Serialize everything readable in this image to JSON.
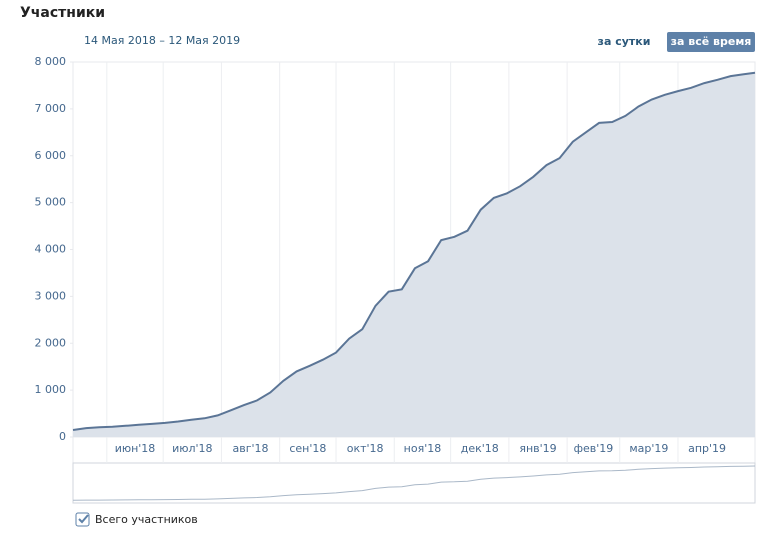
{
  "title": "Участники",
  "subtitle": "14 Мая 2018 – 12 Мая 2019",
  "buttons": [
    "за сутки",
    "за всё время"
  ],
  "chart_data": {
    "type": "area",
    "color": "#5b7596",
    "fill": "#dce2ea",
    "grid": "x",
    "xlim": [
      "2018-05-14",
      "2019-05-12"
    ],
    "xticks": [
      {
        "value": "2018-06-01",
        "label": "июн'18"
      },
      {
        "value": "2018-07-01",
        "label": "июл'18"
      },
      {
        "value": "2018-08-01",
        "label": "авг'18"
      },
      {
        "value": "2018-09-01",
        "label": "сен'18"
      },
      {
        "value": "2018-10-01",
        "label": "окт'18"
      },
      {
        "value": "2018-11-01",
        "label": "ноя'18"
      },
      {
        "value": "2018-12-01",
        "label": "дек'18"
      },
      {
        "value": "2019-01-01",
        "label": "янв'19"
      },
      {
        "value": "2019-02-01",
        "label": "фев'19"
      },
      {
        "value": "2019-03-01",
        "label": "мар'19"
      },
      {
        "value": "2019-04-01",
        "label": "апр'19"
      }
    ],
    "ylim": [
      0,
      8000
    ],
    "yticks": [
      0,
      {
        "value": 1000,
        "label": "1 000"
      },
      {
        "value": 2000,
        "label": "2 000"
      },
      {
        "value": 3000,
        "label": "3 000"
      },
      {
        "value": 4000,
        "label": "4 000"
      },
      {
        "value": 5000,
        "label": "5 000"
      },
      {
        "value": 6000,
        "label": "6 000"
      },
      {
        "value": 7000,
        "label": "7 000"
      },
      {
        "value": 8000,
        "label": "8 000"
      }
    ],
    "x": [
      "2018-05-14",
      "2018-05-21",
      "2018-05-28",
      "2018-06-04",
      "2018-06-11",
      "2018-06-18",
      "2018-06-25",
      "2018-07-02",
      "2018-07-09",
      "2018-07-16",
      "2018-07-23",
      "2018-07-30",
      "2018-08-06",
      "2018-08-13",
      "2018-08-20",
      "2018-08-27",
      "2018-09-03",
      "2018-09-10",
      "2018-09-17",
      "2018-09-24",
      "2018-10-01",
      "2018-10-08",
      "2018-10-15",
      "2018-10-22",
      "2018-10-29",
      "2018-11-05",
      "2018-11-12",
      "2018-11-19",
      "2018-11-26",
      "2018-12-03",
      "2018-12-10",
      "2018-12-17",
      "2018-12-24",
      "2018-12-31",
      "2019-01-07",
      "2019-01-14",
      "2019-01-21",
      "2019-01-28",
      "2019-02-04",
      "2019-02-11",
      "2019-02-18",
      "2019-02-25",
      "2019-03-04",
      "2019-03-11",
      "2019-03-18",
      "2019-03-25",
      "2019-04-01",
      "2019-04-08",
      "2019-04-15",
      "2019-04-22",
      "2019-04-29",
      "2019-05-06",
      "2019-05-12"
    ],
    "series": [
      {
        "name": "Всего участников",
        "values": [
          150,
          190,
          210,
          220,
          240,
          260,
          280,
          300,
          330,
          370,
          400,
          460,
          570,
          680,
          780,
          950,
          1200,
          1400,
          1520,
          1650,
          1800,
          2100,
          2300,
          2800,
          3100,
          3150,
          3600,
          3750,
          4200,
          4270,
          4400,
          4850,
          5100,
          5200,
          5350,
          5550,
          5800,
          5950,
          6300,
          6500,
          6700,
          6720,
          6850,
          7050,
          7200,
          7300,
          7380,
          7450,
          7550,
          7620,
          7700,
          7740,
          7770
        ]
      }
    ]
  }
}
